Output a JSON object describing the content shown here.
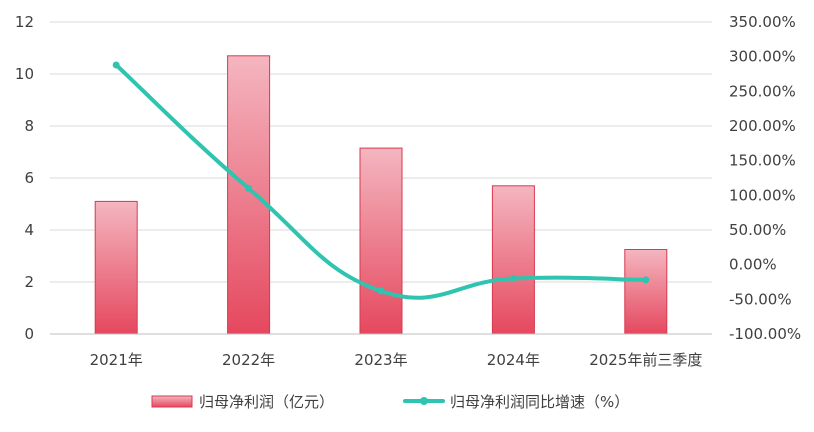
{
  "chart_data": {
    "type": "bar",
    "categories": [
      "2021年",
      "2022年",
      "2023年",
      "2024年",
      "2025年前三季度"
    ],
    "series": [
      {
        "name": "归母净利润（亿元）",
        "type": "bar",
        "axis": "left",
        "values": [
          5.1,
          10.7,
          7.15,
          5.7,
          3.25
        ],
        "color": "#e8485f"
      },
      {
        "name": "归母净利润同比增速（%）",
        "type": "line",
        "axis": "right",
        "values": [
          288,
          110,
          -38,
          -20,
          -22
        ],
        "color": "#2ec4b0"
      }
    ],
    "left_axis": {
      "min": 0,
      "max": 12,
      "step": 2,
      "ticks": [
        "0",
        "2",
        "4",
        "6",
        "8",
        "10",
        "12"
      ]
    },
    "right_axis": {
      "min": -100,
      "max": 350,
      "step": 50,
      "ticks": [
        "-100.00%",
        "-50.00%",
        "0.00%",
        "50.00%",
        "100.00%",
        "150.00%",
        "200.00%",
        "250.00%",
        "300.00%",
        "350.00%"
      ]
    },
    "grid": true,
    "legend_position": "bottom"
  }
}
